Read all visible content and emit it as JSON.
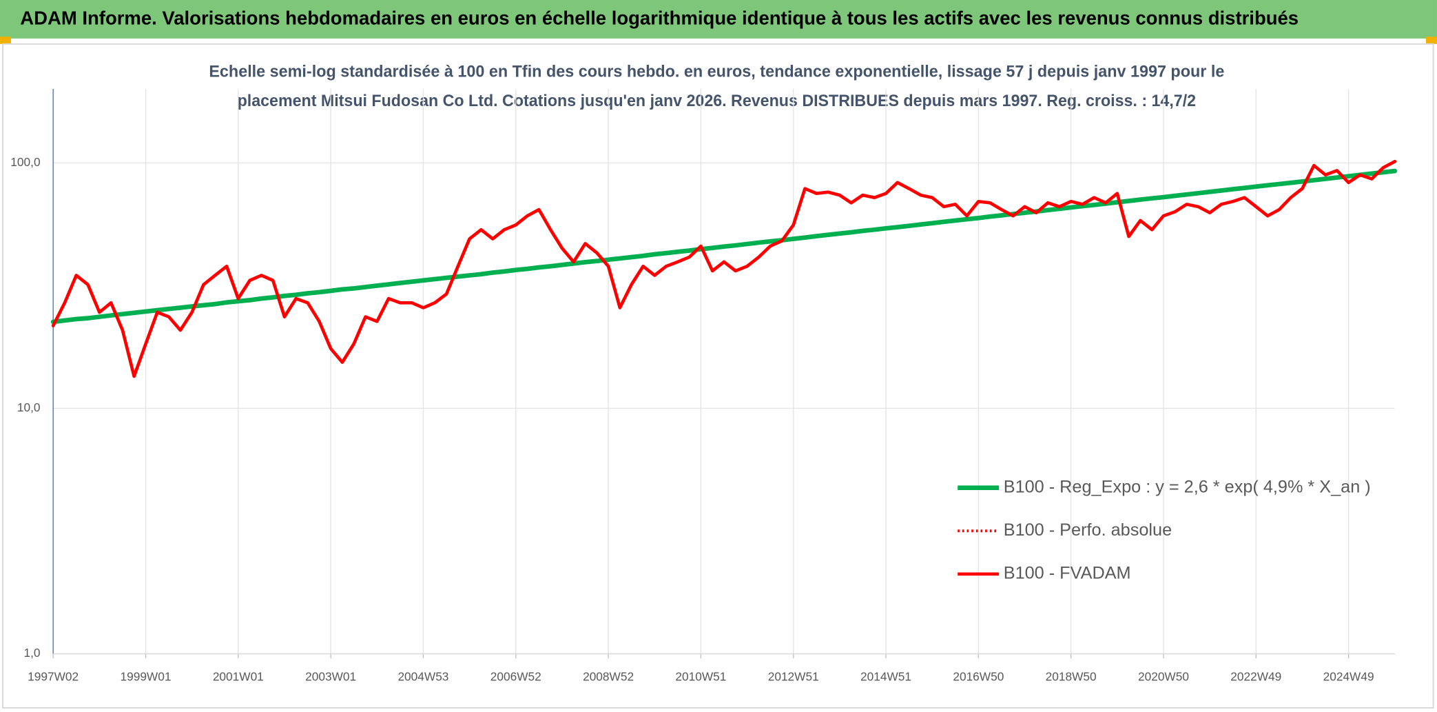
{
  "chart_data": {
    "type": "line",
    "title": "ADAM Informe. Valorisations hebdomadaires en euros en échelle logarithmique identique à tous les actifs avec les revenus connus distribués",
    "subtitle": [
      "Echelle semi-log standardisée à 100 en Tfin des cours hebdo. en euros, tendance exponentielle, lissage 57 j depuis janv 1997 pour le",
      "placement Mitsui Fudosan Co Ltd. Cotations jusqu'en janv 2026. Revenus DISTRIBUES depuis mars 1997. Reg. croiss. : 14,7/2"
    ],
    "categories": [
      "1997W02",
      null,
      null,
      null,
      null,
      null,
      null,
      null,
      "1999W01",
      null,
      null,
      null,
      null,
      null,
      null,
      null,
      "2001W01",
      null,
      null,
      null,
      null,
      null,
      null,
      null,
      "2003W01",
      null,
      null,
      null,
      null,
      null,
      null,
      null,
      "2004W53",
      null,
      null,
      null,
      null,
      null,
      null,
      null,
      "2006W52",
      null,
      null,
      null,
      null,
      null,
      null,
      null,
      "2008W52",
      null,
      null,
      null,
      null,
      null,
      null,
      null,
      "2010W51",
      null,
      null,
      null,
      null,
      null,
      null,
      null,
      "2012W51",
      null,
      null,
      null,
      null,
      null,
      null,
      null,
      "2014W51",
      null,
      null,
      null,
      null,
      null,
      null,
      null,
      "2016W50",
      null,
      null,
      null,
      null,
      null,
      null,
      null,
      "2018W50",
      null,
      null,
      null,
      null,
      null,
      null,
      null,
      "2020W50",
      null,
      null,
      null,
      null,
      null,
      null,
      null,
      "2022W49",
      null,
      null,
      null,
      null,
      null,
      null,
      null,
      "2024W49",
      null,
      null,
      null,
      null
    ],
    "series": [
      {
        "name": "B100 - Reg_Expo : y = 2,6 * exp( 4,9% *  X_an )",
        "color": "#00b050",
        "style": "solid",
        "values": [
          22.5,
          22.8,
          23.1,
          23.3,
          23.6,
          23.9,
          24.2,
          24.5,
          24.8,
          25.1,
          25.4,
          25.7,
          26.0,
          26.3,
          26.6,
          27.0,
          27.3,
          27.6,
          28.0,
          28.3,
          28.7,
          29.0,
          29.4,
          29.7,
          30.1,
          30.5,
          30.8,
          31.2,
          31.6,
          32.0,
          32.4,
          32.8,
          33.2,
          33.6,
          34.0,
          34.4,
          34.8,
          35.2,
          35.7,
          36.1,
          36.6,
          37.0,
          37.5,
          37.9,
          38.4,
          38.9,
          39.4,
          39.8,
          40.3,
          40.8,
          41.3,
          41.8,
          42.4,
          42.9,
          43.4,
          43.9,
          44.5,
          45.0,
          45.6,
          46.1,
          46.7,
          47.3,
          47.9,
          48.4,
          49.0,
          49.6,
          50.3,
          50.9,
          51.5,
          52.1,
          52.8,
          53.4,
          54.1,
          54.7,
          55.4,
          56.1,
          56.8,
          57.5,
          58.2,
          58.9,
          59.6,
          60.4,
          61.1,
          61.9,
          62.6,
          63.4,
          64.2,
          65.0,
          65.8,
          66.6,
          67.4,
          68.2,
          69.1,
          69.9,
          70.8,
          71.7,
          72.5,
          73.4,
          74.3,
          75.2,
          76.2,
          77.1,
          78.1,
          79.0,
          80.0,
          81.0,
          82.0,
          83.0,
          84.0,
          85.0,
          86.1,
          87.1,
          88.2,
          89.3,
          90.4,
          91.5,
          92.6
        ]
      },
      {
        "name": "B100 - Perfo. absolue",
        "color": "#ff0000",
        "style": "dotted",
        "values": [
          21.7,
          26.9,
          34.8,
          31.9,
          24.6,
          26.9,
          20.8,
          13.5,
          18.3,
          24.6,
          23.6,
          20.8,
          24.6,
          31.9,
          34.8,
          37.9,
          28.0,
          33.2,
          34.8,
          33.2,
          23.6,
          28.0,
          26.9,
          22.6,
          17.5,
          15.4,
          18.3,
          23.6,
          22.6,
          28.0,
          26.9,
          26.9,
          25.7,
          26.9,
          29.2,
          37.9,
          49.0,
          53.4,
          49.0,
          53.4,
          55.8,
          60.8,
          64.5,
          53.4,
          44.9,
          39.5,
          46.9,
          43.0,
          37.9,
          25.7,
          31.9,
          37.9,
          34.8,
          37.9,
          39.5,
          41.3,
          45.8,
          36.3,
          39.5,
          36.3,
          37.9,
          41.3,
          45.8,
          48.1,
          55.8,
          78.5,
          75.0,
          76.0,
          73.9,
          68.7,
          73.9,
          72.2,
          75.0,
          83.1,
          78.5,
          73.9,
          72.2,
          66.3,
          67.8,
          60.8,
          69.6,
          68.7,
          64.5,
          60.8,
          66.3,
          62.6,
          68.7,
          66.3,
          69.6,
          67.8,
          72.2,
          68.7,
          75.0,
          50.1,
          58.2,
          53.4,
          60.8,
          63.2,
          67.8,
          66.3,
          62.6,
          67.8,
          69.6,
          72.2,
          66.3,
          60.8,
          64.5,
          72.2,
          78.5,
          97.5,
          89.3,
          93.0,
          83.1,
          89.3,
          86.0,
          95.6,
          101.3
        ]
      },
      {
        "name": "B100 - FVADAM",
        "color": "#ff0000",
        "style": "solid",
        "values": [
          21.7,
          26.9,
          34.8,
          31.9,
          24.6,
          26.9,
          20.8,
          13.5,
          18.3,
          24.6,
          23.6,
          20.8,
          24.6,
          31.9,
          34.8,
          37.9,
          28.0,
          33.2,
          34.8,
          33.2,
          23.6,
          28.0,
          26.9,
          22.6,
          17.5,
          15.4,
          18.3,
          23.6,
          22.6,
          28.0,
          26.9,
          26.9,
          25.7,
          26.9,
          29.2,
          37.9,
          49.0,
          53.4,
          49.0,
          53.4,
          55.8,
          60.8,
          64.5,
          53.4,
          44.9,
          39.5,
          46.9,
          43.0,
          37.9,
          25.7,
          31.9,
          37.9,
          34.8,
          37.9,
          39.5,
          41.3,
          45.8,
          36.3,
          39.5,
          36.3,
          37.9,
          41.3,
          45.8,
          48.1,
          55.8,
          78.5,
          75.0,
          76.0,
          73.9,
          68.7,
          73.9,
          72.2,
          75.0,
          83.1,
          78.5,
          73.9,
          72.2,
          66.3,
          67.8,
          60.8,
          69.6,
          68.7,
          64.5,
          60.8,
          66.3,
          62.6,
          68.7,
          66.3,
          69.6,
          67.8,
          72.2,
          68.7,
          75.0,
          50.1,
          58.2,
          53.4,
          60.8,
          63.2,
          67.8,
          66.3,
          62.6,
          67.8,
          69.6,
          72.2,
          66.3,
          60.8,
          64.5,
          72.2,
          78.5,
          97.5,
          89.3,
          93.0,
          83.1,
          89.3,
          86.0,
          95.6,
          101.3
        ]
      }
    ],
    "ylim": [
      1,
      200
    ],
    "yticks": [
      {
        "value": 1,
        "label": "1,0"
      },
      {
        "value": 10,
        "label": "10,0"
      },
      {
        "value": 100,
        "label": "100,0"
      }
    ],
    "log_scale": true,
    "grid": true,
    "legend": "lower right"
  }
}
